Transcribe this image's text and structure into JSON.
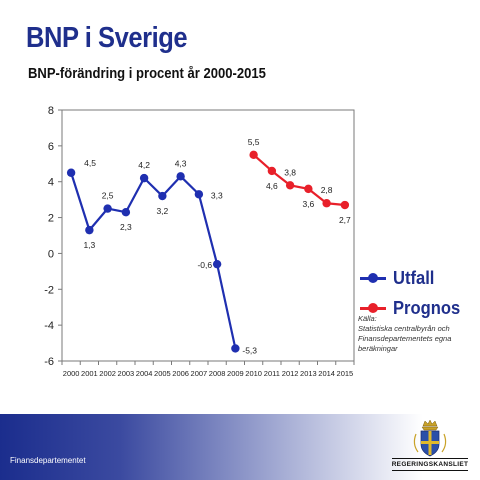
{
  "header": {
    "title": "BNP i Sverige",
    "subtitle": "BNP-förändring i procent år 2000-2015"
  },
  "legend": {
    "items": [
      {
        "label": "Utfall",
        "color": "#1f2fb0"
      },
      {
        "label": "Prognos",
        "color": "#e8202a"
      }
    ]
  },
  "source": {
    "heading": "Källa:",
    "line1": "Statistiska centralbyrån och",
    "line2": "Finansdepartementets egna beräkningar"
  },
  "footer": {
    "department": "Finansdepartementet",
    "logo_text": "REGERINGSKANSLIET",
    "logo_icon": "crown-emblem-icon"
  },
  "chart_data": {
    "type": "line",
    "title": "BNP-förändring i procent år 2000-2015",
    "xlabel": "",
    "ylabel": "",
    "x": [
      "2000",
      "2001",
      "2002",
      "2003",
      "2004",
      "2005",
      "2006",
      "2007",
      "2008",
      "2009",
      "2010",
      "2011",
      "2012",
      "2013",
      "2014",
      "2015"
    ],
    "ylim": [
      -6,
      8
    ],
    "yticks": [
      -6,
      -4,
      -2,
      0,
      2,
      4,
      6,
      8
    ],
    "grid": false,
    "legend_position": "right",
    "series": [
      {
        "name": "Utfall",
        "color": "#1f2fb0",
        "x": [
          "2000",
          "2001",
          "2002",
          "2003",
          "2004",
          "2005",
          "2006",
          "2007",
          "2008",
          "2009"
        ],
        "values": [
          4.5,
          1.3,
          2.5,
          2.3,
          4.2,
          3.2,
          4.3,
          3.3,
          -0.6,
          -5.3
        ],
        "labels": [
          "4,5",
          "1,3",
          "2,5",
          "2,3",
          "4,2",
          "3,2",
          "4,3",
          "3,3",
          "-0,6",
          "-5,3"
        ]
      },
      {
        "name": "Prognos",
        "color": "#e8202a",
        "x": [
          "2010",
          "2011",
          "2012",
          "2013",
          "2014",
          "2015"
        ],
        "values": [
          5.5,
          4.6,
          3.8,
          3.6,
          2.8,
          2.7
        ],
        "labels": [
          "5,5",
          "4,6",
          "3,8",
          "3,6",
          "2,8",
          "2,7"
        ]
      }
    ]
  }
}
